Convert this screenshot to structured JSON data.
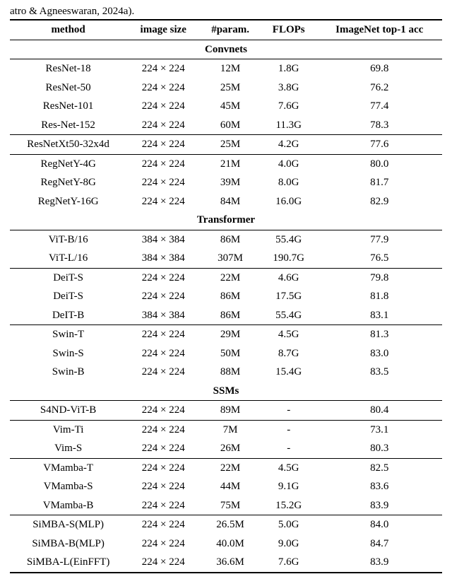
{
  "citation": "atro & Agneeswaran, 2024a).",
  "columns": [
    "method",
    "image size",
    "#param.",
    "FLOPs",
    "ImageNet top-1 acc"
  ],
  "sections": [
    {
      "name": "Convnets",
      "groups": [
        [
          [
            "ResNet-18",
            "224 × 224",
            "12M",
            "1.8G",
            "69.8"
          ],
          [
            "ResNet-50",
            "224 × 224",
            "25M",
            "3.8G",
            "76.2"
          ],
          [
            "ResNet-101",
            "224 × 224",
            "45M",
            "7.6G",
            "77.4"
          ],
          [
            "Res-Net-152",
            "224 × 224",
            "60M",
            "11.3G",
            "78.3"
          ]
        ],
        [
          [
            "ResNetXt50-32x4d",
            "224 × 224",
            "25M",
            "4.2G",
            "77.6"
          ]
        ],
        [
          [
            "RegNetY-4G",
            "224 × 224",
            "21M",
            "4.0G",
            "80.0"
          ],
          [
            "RegNetY-8G",
            "224 × 224",
            "39M",
            "8.0G",
            "81.7"
          ],
          [
            "RegNetY-16G",
            "224 × 224",
            "84M",
            "16.0G",
            "82.9"
          ]
        ]
      ]
    },
    {
      "name": "Transformer",
      "groups": [
        [
          [
            "ViT-B/16",
            "384 × 384",
            "86M",
            "55.4G",
            "77.9"
          ],
          [
            "ViT-L/16",
            "384 × 384",
            "307M",
            "190.7G",
            "76.5"
          ]
        ],
        [
          [
            "DeiT-S",
            "224 × 224",
            "22M",
            "4.6G",
            "79.8"
          ],
          [
            "DeiT-S",
            "224 × 224",
            "86M",
            "17.5G",
            "81.8"
          ],
          [
            "DeIT-B",
            "384 × 384",
            "86M",
            "55.4G",
            "83.1"
          ]
        ],
        [
          [
            "Swin-T",
            "224 × 224",
            "29M",
            "4.5G",
            "81.3"
          ],
          [
            "Swin-S",
            "224 × 224",
            "50M",
            "8.7G",
            "83.0"
          ],
          [
            "Swin-B",
            "224 × 224",
            "88M",
            "15.4G",
            "83.5"
          ]
        ]
      ]
    },
    {
      "name": "SSMs",
      "groups": [
        [
          [
            "S4ND-ViT-B",
            "224 × 224",
            "89M",
            "-",
            "80.4"
          ]
        ],
        [
          [
            "Vim-Ti",
            "224 × 224",
            "7M",
            "-",
            "73.1"
          ],
          [
            "Vim-S",
            "224 × 224",
            "26M",
            "-",
            "80.3"
          ]
        ],
        [
          [
            "VMamba-T",
            "224 × 224",
            "22M",
            "4.5G",
            "82.5"
          ],
          [
            "VMamba-S",
            "224 × 224",
            "44M",
            "9.1G",
            "83.6"
          ],
          [
            "VMamba-B",
            "224 × 224",
            "75M",
            "15.2G",
            "83.9"
          ]
        ],
        [
          [
            "SiMBA-S(MLP)",
            "224 × 224",
            "26.5M",
            "5.0G",
            "84.0"
          ],
          [
            "SiMBA-B(MLP)",
            "224 × 224",
            "40.0M",
            "9.0G",
            "84.7"
          ],
          [
            "SiMBA-L(EinFFT)",
            "224 × 224",
            "36.6M",
            "7.6G",
            "83.9"
          ]
        ]
      ]
    }
  ]
}
